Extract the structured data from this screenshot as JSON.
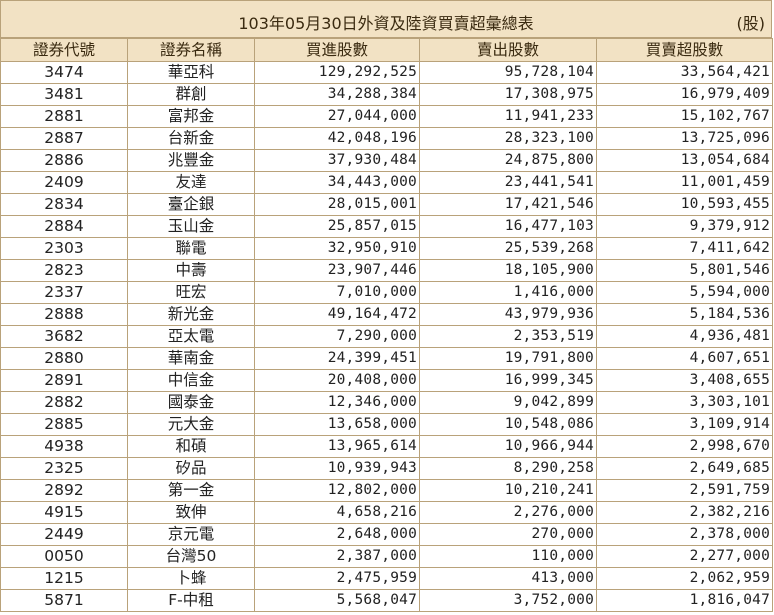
{
  "title": "103年05月30日外資及陸資買賣超彙總表",
  "unit": "(股)",
  "headers": [
    "證券代號",
    "證券名稱",
    "買進股數",
    "賣出股數",
    "買賣超股數"
  ],
  "rows": [
    [
      "3474",
      "華亞科",
      "129,292,525",
      "95,728,104",
      "33,564,421"
    ],
    [
      "3481",
      "群創",
      "34,288,384",
      "17,308,975",
      "16,979,409"
    ],
    [
      "2881",
      "富邦金",
      "27,044,000",
      "11,941,233",
      "15,102,767"
    ],
    [
      "2887",
      "台新金",
      "42,048,196",
      "28,323,100",
      "13,725,096"
    ],
    [
      "2886",
      "兆豐金",
      "37,930,484",
      "24,875,800",
      "13,054,684"
    ],
    [
      "2409",
      "友達",
      "34,443,000",
      "23,441,541",
      "11,001,459"
    ],
    [
      "2834",
      "臺企銀",
      "28,015,001",
      "17,421,546",
      "10,593,455"
    ],
    [
      "2884",
      "玉山金",
      "25,857,015",
      "16,477,103",
      "9,379,912"
    ],
    [
      "2303",
      "聯電",
      "32,950,910",
      "25,539,268",
      "7,411,642"
    ],
    [
      "2823",
      "中壽",
      "23,907,446",
      "18,105,900",
      "5,801,546"
    ],
    [
      "2337",
      "旺宏",
      "7,010,000",
      "1,416,000",
      "5,594,000"
    ],
    [
      "2888",
      "新光金",
      "49,164,472",
      "43,979,936",
      "5,184,536"
    ],
    [
      "3682",
      "亞太電",
      "7,290,000",
      "2,353,519",
      "4,936,481"
    ],
    [
      "2880",
      "華南金",
      "24,399,451",
      "19,791,800",
      "4,607,651"
    ],
    [
      "2891",
      "中信金",
      "20,408,000",
      "16,999,345",
      "3,408,655"
    ],
    [
      "2882",
      "國泰金",
      "12,346,000",
      "9,042,899",
      "3,303,101"
    ],
    [
      "2885",
      "元大金",
      "13,658,000",
      "10,548,086",
      "3,109,914"
    ],
    [
      "4938",
      "和碩",
      "13,965,614",
      "10,966,944",
      "2,998,670"
    ],
    [
      "2325",
      "矽品",
      "10,939,943",
      "8,290,258",
      "2,649,685"
    ],
    [
      "2892",
      "第一金",
      "12,802,000",
      "10,210,241",
      "2,591,759"
    ],
    [
      "4915",
      "致伸",
      "4,658,216",
      "2,276,000",
      "2,382,216"
    ],
    [
      "2449",
      "京元電",
      "2,648,000",
      "270,000",
      "2,378,000"
    ],
    [
      "0050",
      "台灣50",
      "2,387,000",
      "110,000",
      "2,277,000"
    ],
    [
      "1215",
      "卜蜂",
      "2,475,959",
      "413,000",
      "2,062,959"
    ],
    [
      "5871",
      "F-中租",
      "5,568,047",
      "3,752,000",
      "1,816,047"
    ]
  ]
}
